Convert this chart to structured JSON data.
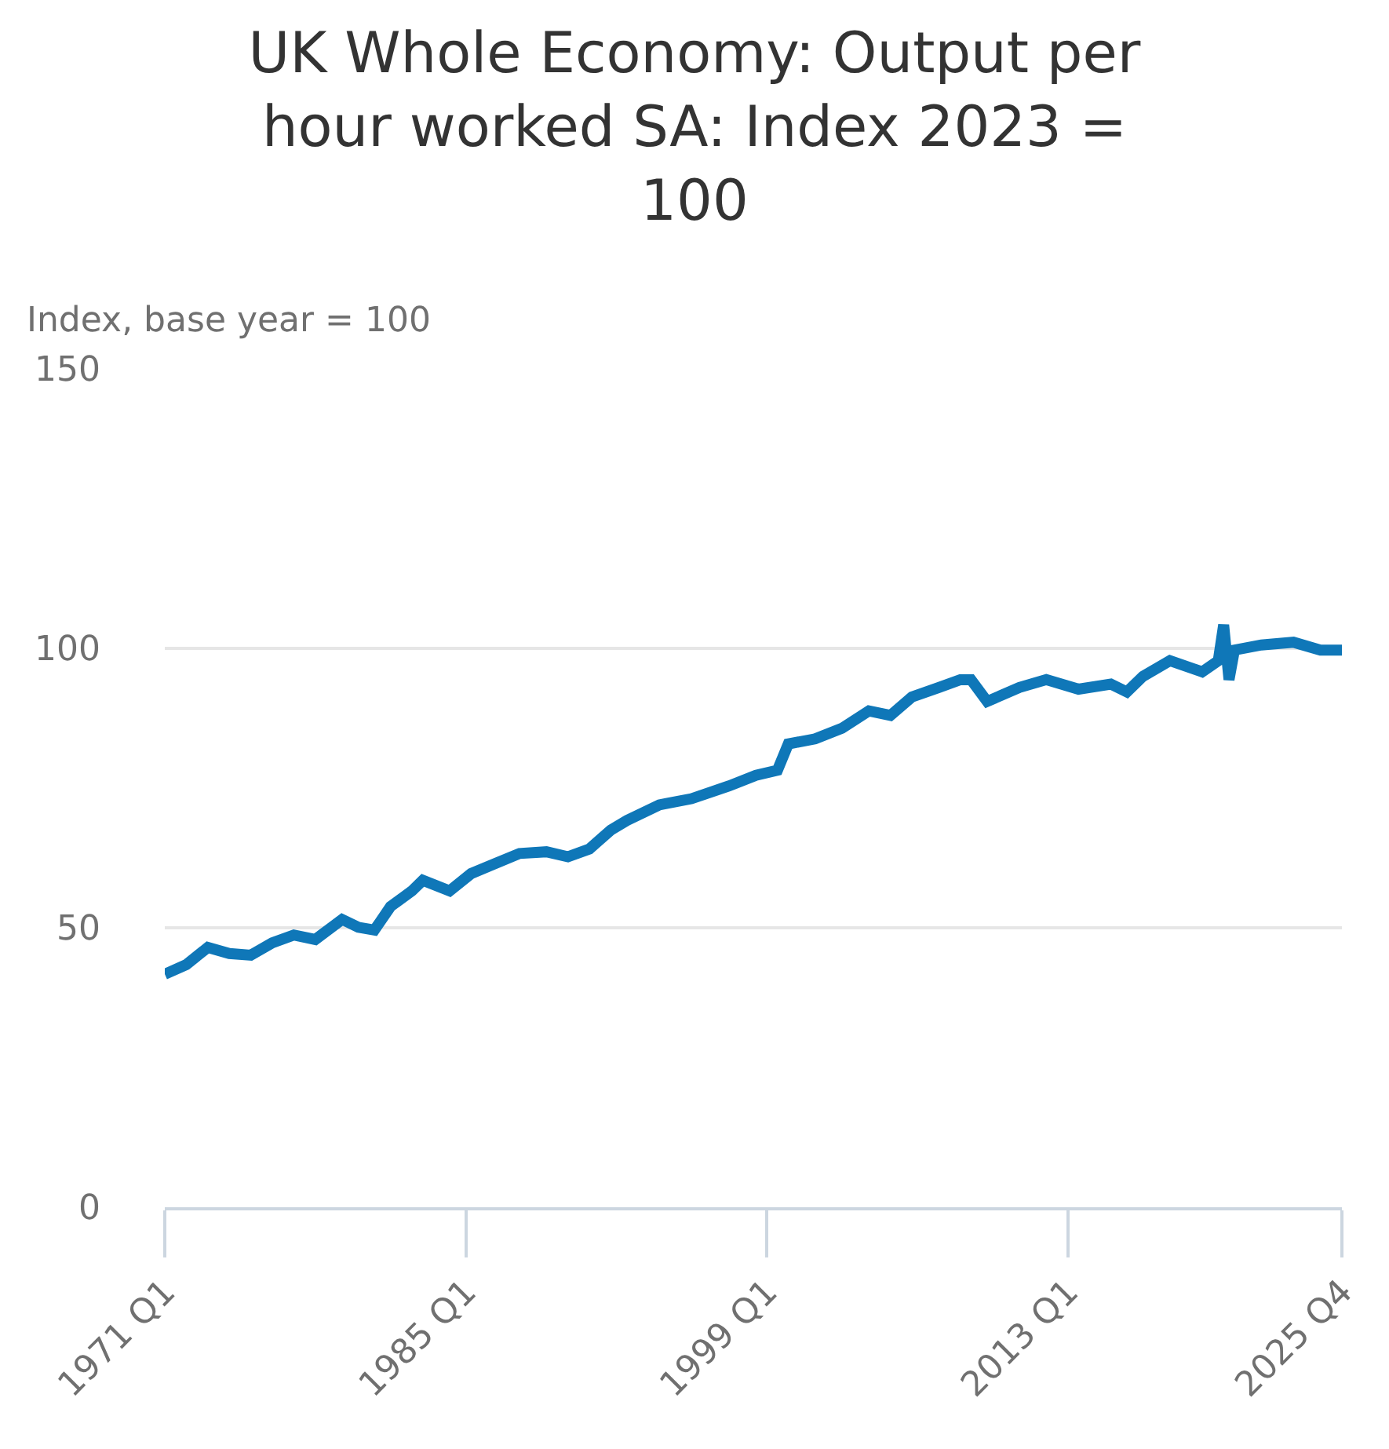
{
  "chart_data": {
    "type": "line",
    "title": "UK Whole Economy: Output per hour worked SA: Index 2023 = 100",
    "ylabel": "Index, base year = 100",
    "x": [
      "1971-01",
      "1972-01",
      "1973-01",
      "1974-01",
      "1975-01",
      "1976-01",
      "1977-01",
      "1978-01",
      "1979-04",
      "1980-01",
      "1980-10",
      "1981-01",
      "1981-07",
      "1982-07",
      "1983-01",
      "1984-04",
      "1985-04",
      "1986-04",
      "1987-07",
      "1988-10",
      "1989-10",
      "1990-10",
      "1991-10",
      "1992-07",
      "1994-01",
      "1995-07",
      "1997-04",
      "1998-07",
      "1999-07",
      "2000-01",
      "2001-04",
      "2002-07",
      "2003-10",
      "2004-10",
      "2005-10",
      "2007-01",
      "2008-01",
      "2008-07",
      "2009-04",
      "2010-10",
      "2012-01",
      "2013-07",
      "2015-01",
      "2015-10",
      "2016-07",
      "2017-10",
      "2019-04",
      "2020-01",
      "2020-04",
      "2020-07",
      "2020-10",
      "2022-01",
      "2023-07",
      "2024-10",
      "2025-10"
    ],
    "series": [
      {
        "color": "#0f77b8",
        "values": [
          41.7,
          43.4,
          46.5,
          45.4,
          45.1,
          47.3,
          48.7,
          47.9,
          51.5,
          50.1,
          49.6,
          51,
          53.8,
          56.6,
          58.5,
          56.6,
          59.7,
          61.3,
          63.3,
          63.6,
          62.7,
          64.1,
          67.5,
          69.2,
          72,
          73.1,
          75.4,
          77.3,
          78.2,
          82.9,
          83.8,
          85.7,
          88.8,
          88,
          91.3,
          93,
          94.4,
          94.4,
          90.5,
          93,
          94.4,
          92.7,
          93.6,
          92.2,
          95,
          97.8,
          95.8,
          97.8,
          104.2,
          94.4,
          99.7,
          100.6,
          101.1,
          99.7,
          99.7
        ]
      }
    ],
    "xlim": [
      "1971-01",
      "2025-10"
    ],
    "xticks": [
      {
        "value": "1971-01",
        "label": "1971 Q1"
      },
      {
        "value": "1985-01",
        "label": "1985 Q1"
      },
      {
        "value": "1999-01",
        "label": "1999 Q1"
      },
      {
        "value": "2013-01",
        "label": "2013 Q1"
      },
      {
        "value": "2025-10",
        "label": "2025 Q4"
      }
    ],
    "ylim": [
      0,
      150
    ],
    "yticks": [
      0,
      50,
      100,
      150
    ],
    "grid": "y",
    "marker": "none",
    "line_style": "solid"
  }
}
